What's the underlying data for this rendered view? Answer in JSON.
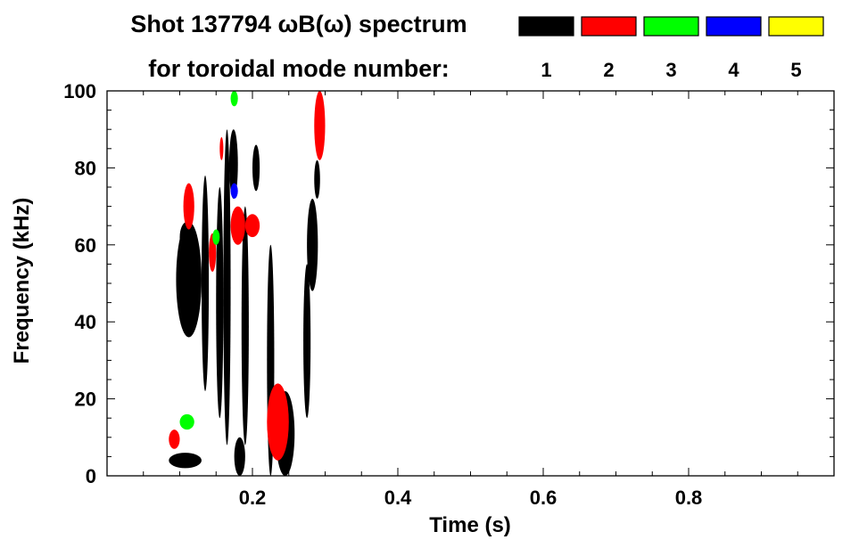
{
  "chart_data": {
    "type": "heatmap",
    "title": "Shot 137794 ωB(ω) spectrum",
    "subtitle": "for toroidal mode number:",
    "xlabel": "Time (s)",
    "ylabel": "Frequency (kHz)",
    "xlim": [
      0.0,
      1.0
    ],
    "ylim": [
      0,
      100
    ],
    "x_ticks": [
      {
        "value": 0.2,
        "label": "0.2"
      },
      {
        "value": 0.4,
        "label": "0.4"
      },
      {
        "value": 0.6,
        "label": "0.6"
      },
      {
        "value": 0.8,
        "label": "0.8"
      }
    ],
    "y_ticks": [
      {
        "value": 0,
        "label": "0"
      },
      {
        "value": 20,
        "label": "20"
      },
      {
        "value": 40,
        "label": "40"
      },
      {
        "value": 60,
        "label": "60"
      },
      {
        "value": 80,
        "label": "80"
      },
      {
        "value": 100,
        "label": "100"
      }
    ],
    "legend": {
      "placement": "top-right",
      "entries": [
        {
          "label": "1",
          "color": "#000000"
        },
        {
          "label": "2",
          "color": "#ff0000"
        },
        {
          "label": "3",
          "color": "#00ff00"
        },
        {
          "label": "4",
          "color": "#0000ff"
        },
        {
          "label": "5",
          "color": "#ffff00"
        }
      ]
    },
    "grid": false,
    "series": [
      {
        "mode": "1",
        "color": "#000000",
        "blobs": [
          {
            "t": [
              0.095,
              0.13
            ],
            "f": [
              36,
              66
            ]
          },
          {
            "t": [
              0.1,
              0.12
            ],
            "f": [
              58,
              66
            ]
          },
          {
            "t": [
              0.085,
              0.13
            ],
            "f": [
              2,
              6
            ]
          },
          {
            "t": [
              0.168,
              0.18
            ],
            "f": [
              72,
              90
            ]
          },
          {
            "t": [
              0.175,
              0.19
            ],
            "f": [
              0,
              10
            ]
          },
          {
            "t": [
              0.2,
              0.21
            ],
            "f": [
              74,
              86
            ]
          },
          {
            "t": [
              0.232,
              0.258
            ],
            "f": [
              0,
              22
            ]
          },
          {
            "t": [
              0.275,
              0.29
            ],
            "f": [
              48,
              72
            ]
          },
          {
            "t": [
              0.285,
              0.293
            ],
            "f": [
              72,
              82
            ]
          },
          {
            "t": [
              0.13,
              0.14
            ],
            "f": [
              22,
              78
            ]
          },
          {
            "t": [
              0.15,
              0.16
            ],
            "f": [
              15,
              75
            ]
          },
          {
            "t": [
              0.16,
              0.17
            ],
            "f": [
              8,
              90
            ]
          },
          {
            "t": [
              0.185,
              0.195
            ],
            "f": [
              8,
              70
            ]
          },
          {
            "t": [
              0.22,
              0.23
            ],
            "f": [
              0,
              60
            ]
          },
          {
            "t": [
              0.27,
              0.28
            ],
            "f": [
              15,
              55
            ]
          }
        ]
      },
      {
        "mode": "2",
        "color": "#ff0000",
        "blobs": [
          {
            "t": [
              0.105,
              0.12
            ],
            "f": [
              64,
              76
            ]
          },
          {
            "t": [
              0.14,
              0.15
            ],
            "f": [
              53,
              63
            ]
          },
          {
            "t": [
              0.17,
              0.19
            ],
            "f": [
              60,
              70
            ]
          },
          {
            "t": [
              0.19,
              0.21
            ],
            "f": [
              62,
              68
            ]
          },
          {
            "t": [
              0.085,
              0.1
            ],
            "f": [
              7,
              12
            ]
          },
          {
            "t": [
              0.22,
              0.25
            ],
            "f": [
              4,
              24
            ]
          },
          {
            "t": [
              0.285,
              0.3
            ],
            "f": [
              82,
              100
            ]
          },
          {
            "t": [
              0.155,
              0.16
            ],
            "f": [
              82,
              88
            ]
          }
        ]
      },
      {
        "mode": "3",
        "color": "#00ff00",
        "blobs": [
          {
            "t": [
              0.17,
              0.18
            ],
            "f": [
              96,
              100
            ]
          },
          {
            "t": [
              0.1,
              0.12
            ],
            "f": [
              12,
              16
            ]
          },
          {
            "t": [
              0.145,
              0.155
            ],
            "f": [
              60,
              64
            ]
          }
        ]
      },
      {
        "mode": "4",
        "color": "#0000ff",
        "blobs": [
          {
            "t": [
              0.17,
              0.18
            ],
            "f": [
              72,
              76
            ]
          }
        ]
      }
    ]
  }
}
